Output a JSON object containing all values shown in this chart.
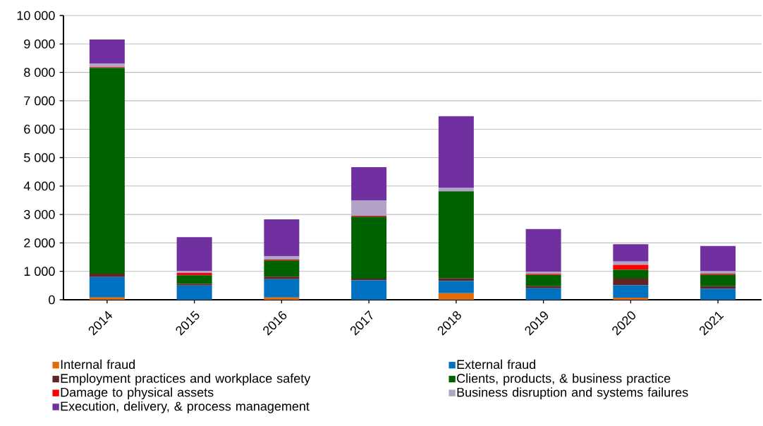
{
  "chart_data": {
    "type": "bar",
    "stacked": true,
    "grid": "y",
    "legend": "bottom",
    "categories": [
      "2014",
      "2015",
      "2016",
      "2017",
      "2018",
      "2019",
      "2020",
      "2021"
    ],
    "ylim": [
      0,
      10000
    ],
    "yticks": [
      0,
      {
        "value": 1000,
        "label": "1 000"
      },
      {
        "value": 2000,
        "label": "2 000"
      },
      {
        "value": 3000,
        "label": "3 000"
      },
      {
        "value": 4000,
        "label": "4 000"
      },
      {
        "value": 5000,
        "label": "5 000"
      },
      {
        "value": 6000,
        "label": "6 000"
      },
      {
        "value": 7000,
        "label": "7 000"
      },
      {
        "value": 8000,
        "label": "8 000"
      },
      {
        "value": 9000,
        "label": "9 000"
      },
      {
        "value": 10000,
        "label": "10 000"
      }
    ],
    "series": [
      {
        "name": "Internal fraud",
        "color": "#e36c09",
        "values": [
          80,
          null,
          80,
          null,
          230,
          null,
          75,
          null
        ]
      },
      {
        "name": "External fraud",
        "color": "#0070c0",
        "values": [
          720,
          500,
          645,
          680,
          430,
          405,
          435,
          390
        ]
      },
      {
        "name": "Employment practices and workplace safety",
        "color": "#632523",
        "values": [
          120,
          60,
          90,
          65,
          90,
          75,
          235,
          90
        ]
      },
      {
        "name": "Clients, products, & business practice",
        "color": "#006100",
        "values": [
          7240,
          300,
          570,
          2175,
          3065,
          395,
          310,
          400
        ]
      },
      {
        "name": "Damage to physical assets",
        "color": "#ff0000",
        "values": [
          20,
          80,
          30,
          35,
          null,
          40,
          175,
          40
        ]
      },
      {
        "name": "Business disruption and systems failures",
        "color": "#b3a2c7",
        "values": [
          125,
          80,
          110,
          530,
          130,
          65,
          115,
          85
        ]
      },
      {
        "name": "Execution, delivery, & process management",
        "color": "#7030a0",
        "values": [
          850,
          1180,
          1305,
          1180,
          2510,
          1505,
          610,
          885
        ]
      }
    ]
  }
}
